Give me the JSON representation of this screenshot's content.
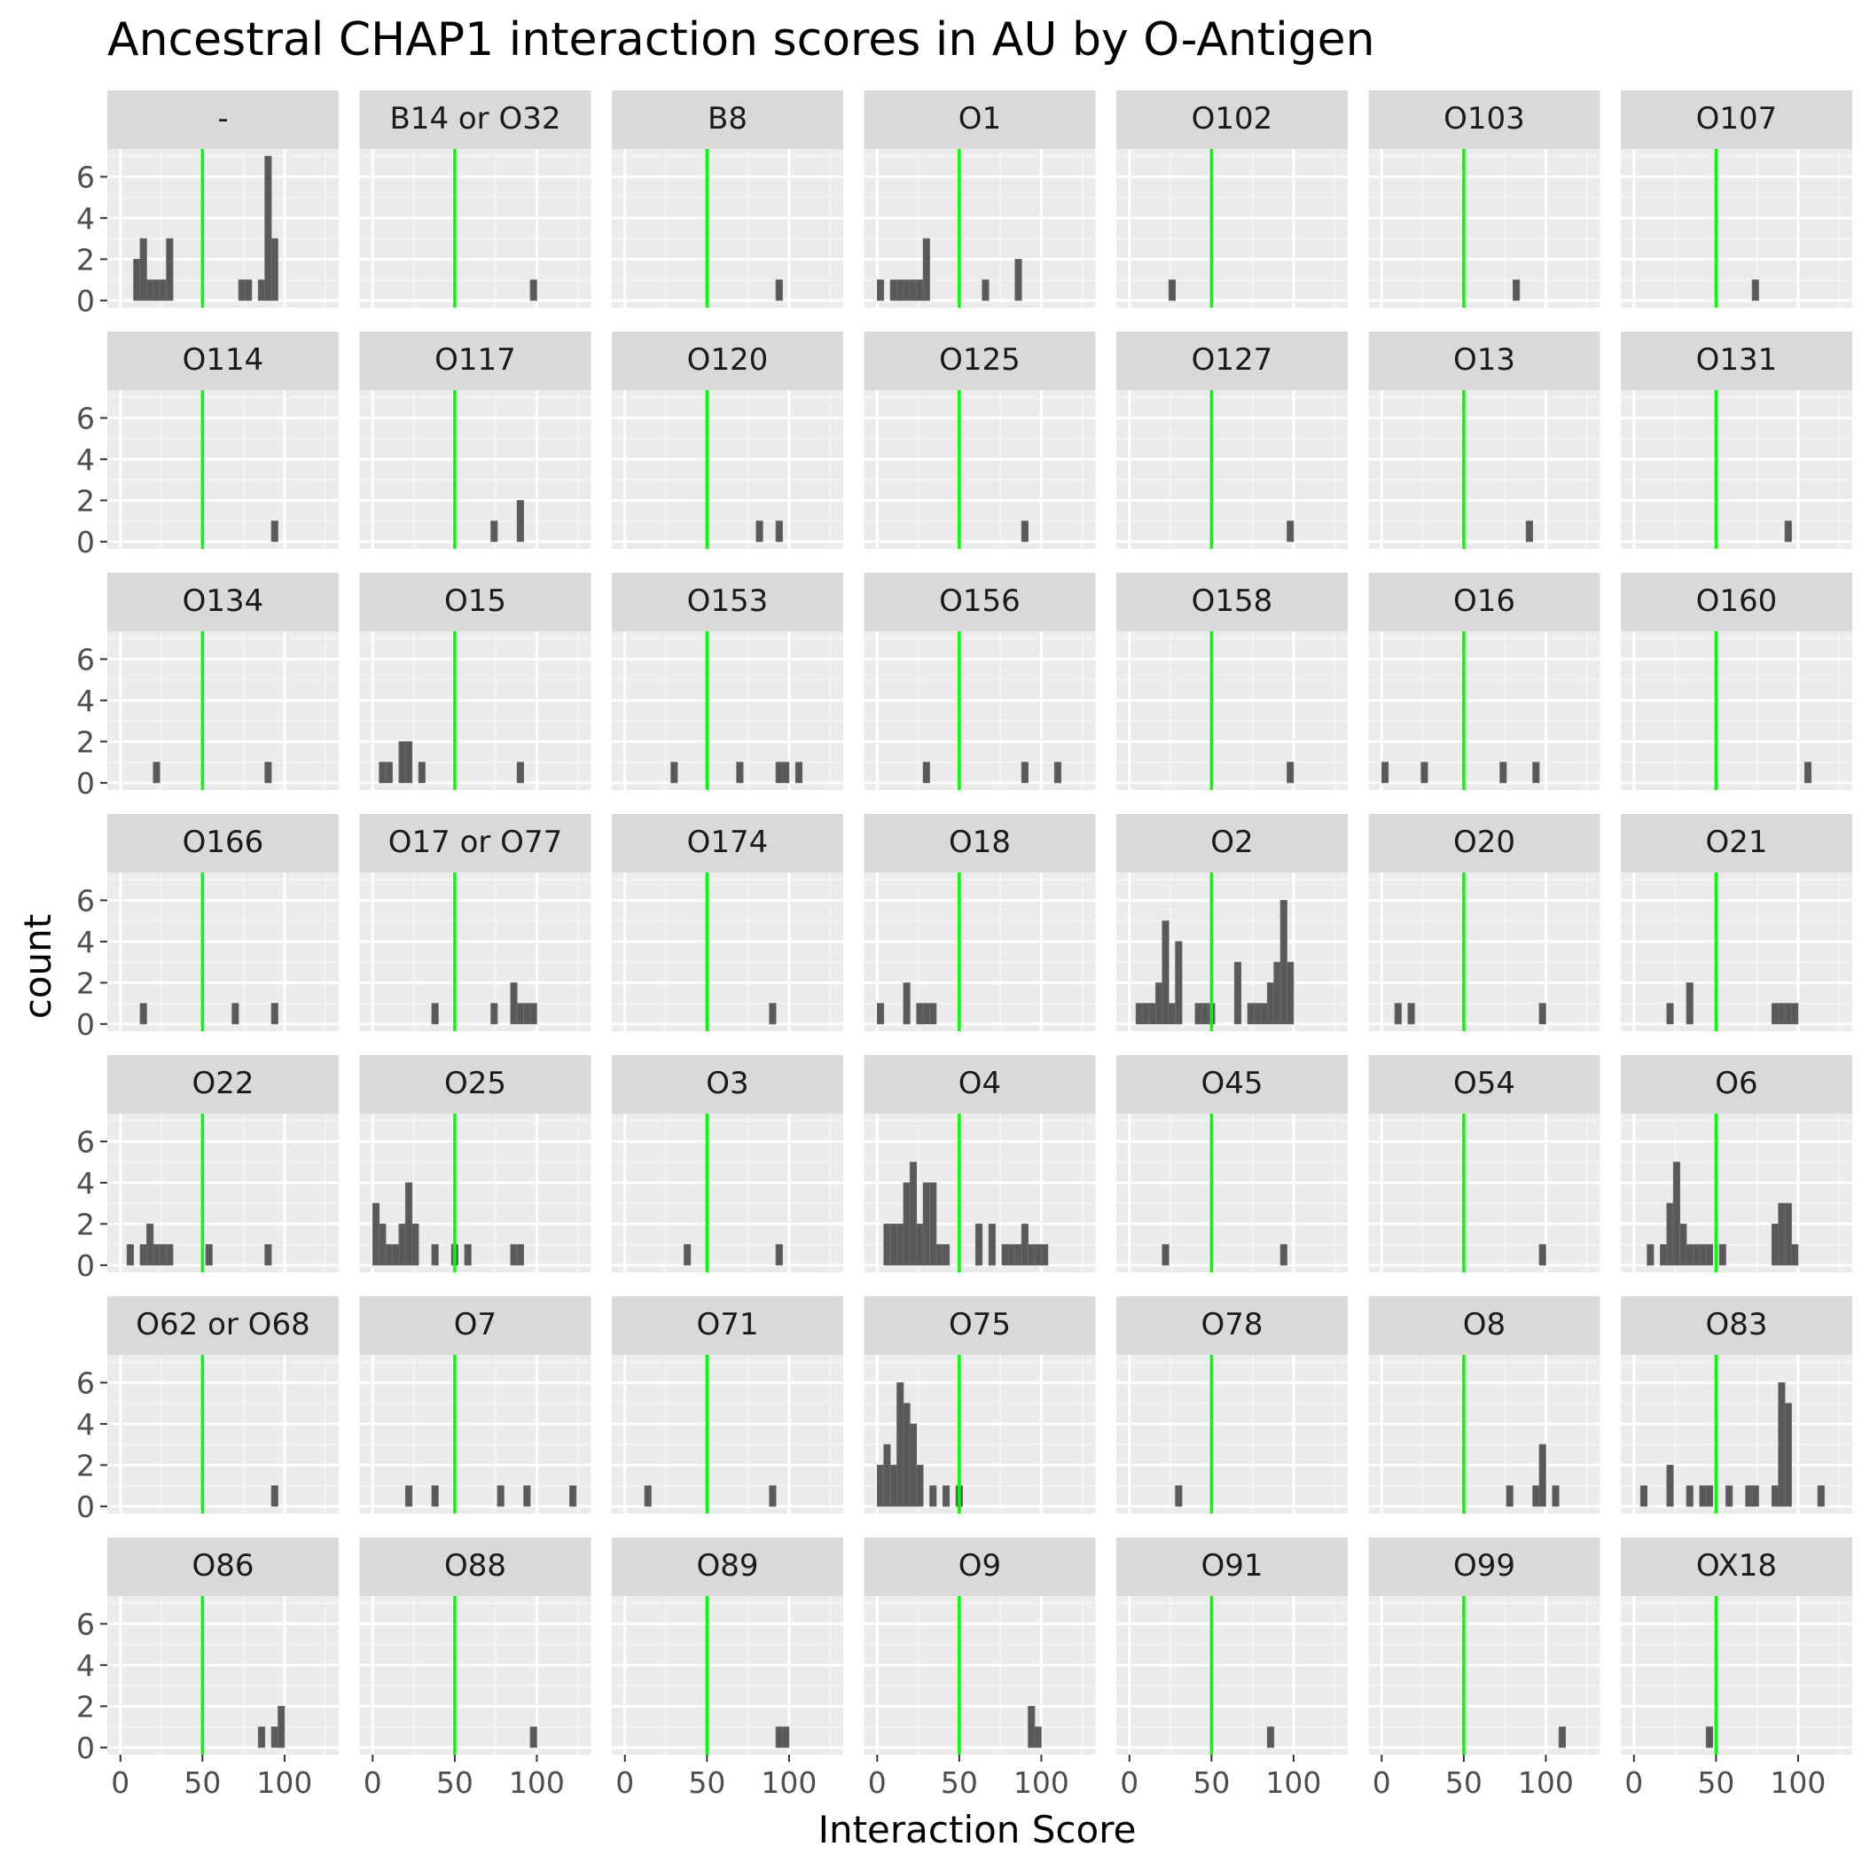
{
  "chart_data": {
    "type": "histogram",
    "title": "Ancestral CHAP1 interaction scores in AU by O-Antigen",
    "xlabel": "Interaction Score",
    "ylabel": "count",
    "xlim": [
      -8,
      133
    ],
    "ylim": [
      -0.35,
      7.35
    ],
    "x_ticks": [
      0,
      50,
      100
    ],
    "y_ticks": [
      0,
      2,
      4,
      6
    ],
    "bin_width": 4,
    "reference_line": {
      "x": 50,
      "color": "#00ff00"
    },
    "grid": true,
    "panel_background": "#ebebeb",
    "strip_background": "#d9d9d9",
    "bar_color": "#595959",
    "facets": [
      {
        "label": "-",
        "bins": [
          [
            10,
            2
          ],
          [
            14,
            3
          ],
          [
            18,
            1
          ],
          [
            22,
            1
          ],
          [
            26,
            1
          ],
          [
            30,
            3
          ],
          [
            74,
            1
          ],
          [
            78,
            1
          ],
          [
            86,
            1
          ],
          [
            90,
            7
          ],
          [
            94,
            3
          ]
        ]
      },
      {
        "label": "B14 or O32",
        "bins": [
          [
            98,
            1
          ]
        ]
      },
      {
        "label": "B8",
        "bins": [
          [
            94,
            1
          ]
        ]
      },
      {
        "label": "O1",
        "bins": [
          [
            2,
            1
          ],
          [
            10,
            1
          ],
          [
            14,
            1
          ],
          [
            18,
            1
          ],
          [
            22,
            1
          ],
          [
            26,
            1
          ],
          [
            30,
            3
          ],
          [
            66,
            1
          ],
          [
            86,
            2
          ]
        ]
      },
      {
        "label": "O102",
        "bins": [
          [
            26,
            1
          ]
        ]
      },
      {
        "label": "O103",
        "bins": [
          [
            82,
            1
          ]
        ]
      },
      {
        "label": "O107",
        "bins": [
          [
            74,
            1
          ]
        ]
      },
      {
        "label": "O114",
        "bins": [
          [
            94,
            1
          ]
        ]
      },
      {
        "label": "O117",
        "bins": [
          [
            74,
            1
          ],
          [
            90,
            2
          ]
        ]
      },
      {
        "label": "O120",
        "bins": [
          [
            82,
            1
          ],
          [
            94,
            1
          ]
        ]
      },
      {
        "label": "O125",
        "bins": [
          [
            90,
            1
          ]
        ]
      },
      {
        "label": "O127",
        "bins": [
          [
            98,
            1
          ]
        ]
      },
      {
        "label": "O13",
        "bins": [
          [
            90,
            1
          ]
        ]
      },
      {
        "label": "O131",
        "bins": [
          [
            94,
            1
          ]
        ]
      },
      {
        "label": "O134",
        "bins": [
          [
            22,
            1
          ],
          [
            90,
            1
          ]
        ]
      },
      {
        "label": "O15",
        "bins": [
          [
            6,
            1
          ],
          [
            10,
            1
          ],
          [
            18,
            2
          ],
          [
            22,
            2
          ],
          [
            30,
            1
          ],
          [
            90,
            1
          ]
        ]
      },
      {
        "label": "O153",
        "bins": [
          [
            30,
            1
          ],
          [
            70,
            1
          ],
          [
            94,
            1
          ],
          [
            98,
            1
          ],
          [
            106,
            1
          ]
        ]
      },
      {
        "label": "O156",
        "bins": [
          [
            30,
            1
          ],
          [
            90,
            1
          ],
          [
            110,
            1
          ]
        ]
      },
      {
        "label": "O158",
        "bins": [
          [
            98,
            1
          ]
        ]
      },
      {
        "label": "O16",
        "bins": [
          [
            2,
            1
          ],
          [
            26,
            1
          ],
          [
            74,
            1
          ],
          [
            94,
            1
          ]
        ]
      },
      {
        "label": "O160",
        "bins": [
          [
            106,
            1
          ]
        ]
      },
      {
        "label": "O166",
        "bins": [
          [
            14,
            1
          ],
          [
            70,
            1
          ],
          [
            94,
            1
          ]
        ]
      },
      {
        "label": "O17 or O77",
        "bins": [
          [
            38,
            1
          ],
          [
            74,
            1
          ],
          [
            86,
            2
          ],
          [
            90,
            1
          ],
          [
            94,
            1
          ],
          [
            98,
            1
          ]
        ]
      },
      {
        "label": "O174",
        "bins": [
          [
            90,
            1
          ]
        ]
      },
      {
        "label": "O18",
        "bins": [
          [
            2,
            1
          ],
          [
            18,
            2
          ],
          [
            26,
            1
          ],
          [
            30,
            1
          ],
          [
            34,
            1
          ]
        ]
      },
      {
        "label": "O2",
        "bins": [
          [
            6,
            1
          ],
          [
            10,
            1
          ],
          [
            14,
            1
          ],
          [
            18,
            2
          ],
          [
            22,
            5
          ],
          [
            26,
            1
          ],
          [
            30,
            4
          ],
          [
            42,
            1
          ],
          [
            46,
            1
          ],
          [
            50,
            1
          ],
          [
            66,
            3
          ],
          [
            74,
            1
          ],
          [
            78,
            1
          ],
          [
            82,
            1
          ],
          [
            86,
            2
          ],
          [
            90,
            3
          ],
          [
            94,
            6
          ],
          [
            98,
            3
          ]
        ]
      },
      {
        "label": "O20",
        "bins": [
          [
            10,
            1
          ],
          [
            18,
            1
          ],
          [
            98,
            1
          ]
        ]
      },
      {
        "label": "O21",
        "bins": [
          [
            22,
            1
          ],
          [
            34,
            2
          ],
          [
            86,
            1
          ],
          [
            90,
            1
          ],
          [
            94,
            1
          ],
          [
            98,
            1
          ]
        ]
      },
      {
        "label": "O22",
        "bins": [
          [
            6,
            1
          ],
          [
            14,
            1
          ],
          [
            18,
            2
          ],
          [
            22,
            1
          ],
          [
            26,
            1
          ],
          [
            30,
            1
          ],
          [
            54,
            1
          ],
          [
            90,
            1
          ]
        ]
      },
      {
        "label": "O25",
        "bins": [
          [
            2,
            3
          ],
          [
            6,
            2
          ],
          [
            10,
            1
          ],
          [
            14,
            1
          ],
          [
            18,
            2
          ],
          [
            22,
            4
          ],
          [
            26,
            2
          ],
          [
            38,
            1
          ],
          [
            50,
            1
          ],
          [
            58,
            1
          ],
          [
            86,
            1
          ],
          [
            90,
            1
          ]
        ]
      },
      {
        "label": "O3",
        "bins": [
          [
            38,
            1
          ],
          [
            94,
            1
          ]
        ]
      },
      {
        "label": "O4",
        "bins": [
          [
            6,
            2
          ],
          [
            10,
            2
          ],
          [
            14,
            2
          ],
          [
            18,
            4
          ],
          [
            22,
            5
          ],
          [
            26,
            2
          ],
          [
            30,
            4
          ],
          [
            34,
            4
          ],
          [
            38,
            1
          ],
          [
            42,
            1
          ],
          [
            62,
            2
          ],
          [
            70,
            2
          ],
          [
            78,
            1
          ],
          [
            82,
            1
          ],
          [
            86,
            1
          ],
          [
            90,
            2
          ],
          [
            94,
            1
          ],
          [
            98,
            1
          ],
          [
            102,
            1
          ]
        ]
      },
      {
        "label": "O45",
        "bins": [
          [
            22,
            1
          ],
          [
            94,
            1
          ]
        ]
      },
      {
        "label": "O54",
        "bins": [
          [
            98,
            1
          ]
        ]
      },
      {
        "label": "O6",
        "bins": [
          [
            10,
            1
          ],
          [
            18,
            1
          ],
          [
            22,
            3
          ],
          [
            26,
            5
          ],
          [
            30,
            2
          ],
          [
            34,
            1
          ],
          [
            38,
            1
          ],
          [
            42,
            1
          ],
          [
            46,
            1
          ],
          [
            54,
            1
          ],
          [
            86,
            2
          ],
          [
            90,
            3
          ],
          [
            94,
            3
          ],
          [
            98,
            1
          ]
        ]
      },
      {
        "label": "O62 or O68",
        "bins": [
          [
            94,
            1
          ]
        ]
      },
      {
        "label": "O7",
        "bins": [
          [
            22,
            1
          ],
          [
            38,
            1
          ],
          [
            78,
            1
          ],
          [
            94,
            1
          ],
          [
            122,
            1
          ]
        ]
      },
      {
        "label": "O71",
        "bins": [
          [
            14,
            1
          ],
          [
            90,
            1
          ]
        ]
      },
      {
        "label": "O75",
        "bins": [
          [
            2,
            2
          ],
          [
            6,
            3
          ],
          [
            10,
            2
          ],
          [
            14,
            6
          ],
          [
            18,
            5
          ],
          [
            22,
            4
          ],
          [
            26,
            2
          ],
          [
            34,
            1
          ],
          [
            42,
            1
          ],
          [
            50,
            1
          ]
        ]
      },
      {
        "label": "O78",
        "bins": [
          [
            30,
            1
          ]
        ]
      },
      {
        "label": "O8",
        "bins": [
          [
            78,
            1
          ],
          [
            94,
            1
          ],
          [
            98,
            3
          ],
          [
            106,
            1
          ]
        ]
      },
      {
        "label": "O83",
        "bins": [
          [
            6,
            1
          ],
          [
            22,
            2
          ],
          [
            34,
            1
          ],
          [
            42,
            1
          ],
          [
            46,
            1
          ],
          [
            58,
            1
          ],
          [
            70,
            1
          ],
          [
            74,
            1
          ],
          [
            86,
            1
          ],
          [
            90,
            6
          ],
          [
            94,
            5
          ],
          [
            114,
            1
          ]
        ]
      },
      {
        "label": "O86",
        "bins": [
          [
            86,
            1
          ],
          [
            94,
            1
          ],
          [
            98,
            2
          ]
        ]
      },
      {
        "label": "O88",
        "bins": [
          [
            98,
            1
          ]
        ]
      },
      {
        "label": "O89",
        "bins": [
          [
            94,
            1
          ],
          [
            98,
            1
          ]
        ]
      },
      {
        "label": "O9",
        "bins": [
          [
            94,
            2
          ],
          [
            98,
            1
          ]
        ]
      },
      {
        "label": "O91",
        "bins": [
          [
            86,
            1
          ]
        ]
      },
      {
        "label": "O99",
        "bins": [
          [
            110,
            1
          ]
        ]
      },
      {
        "label": "OX18",
        "bins": [
          [
            46,
            1
          ]
        ]
      }
    ]
  }
}
